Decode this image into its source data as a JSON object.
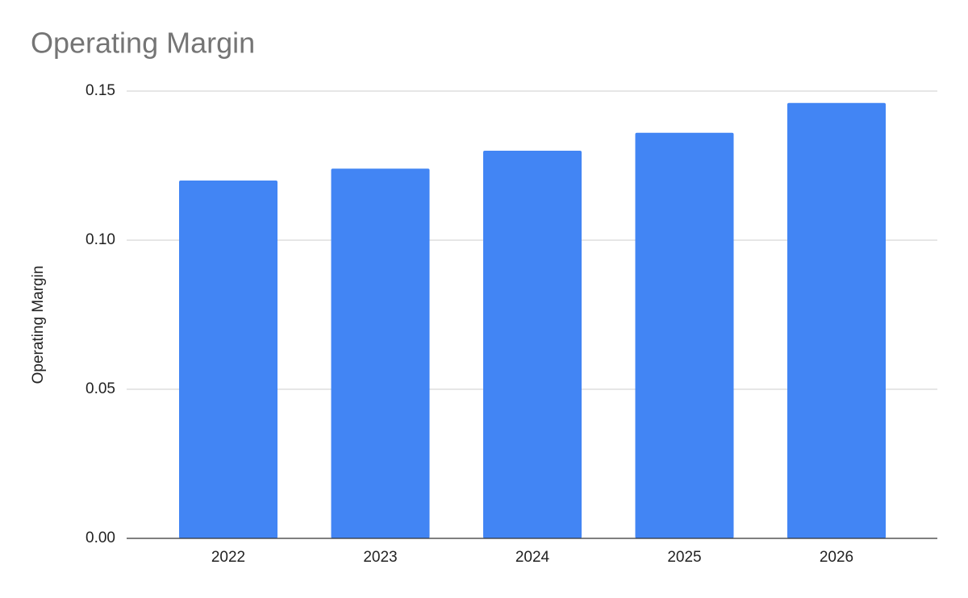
{
  "chart_data": {
    "type": "bar",
    "title": "Operating Margin",
    "y_label": "Operating Margin",
    "categories": [
      "2022",
      "2023",
      "2024",
      "2025",
      "2026"
    ],
    "values": [
      0.12,
      0.124,
      0.13,
      0.136,
      0.146
    ],
    "color": "#4285f4",
    "ylim": [
      0,
      0.15
    ],
    "yticks": [
      {
        "value": 0,
        "label": "0.00"
      },
      {
        "value": 0.05,
        "label": "0.05"
      },
      {
        "value": 0.1,
        "label": "0.10"
      },
      {
        "value": 0.15,
        "label": "0.15"
      }
    ],
    "grid": true
  }
}
